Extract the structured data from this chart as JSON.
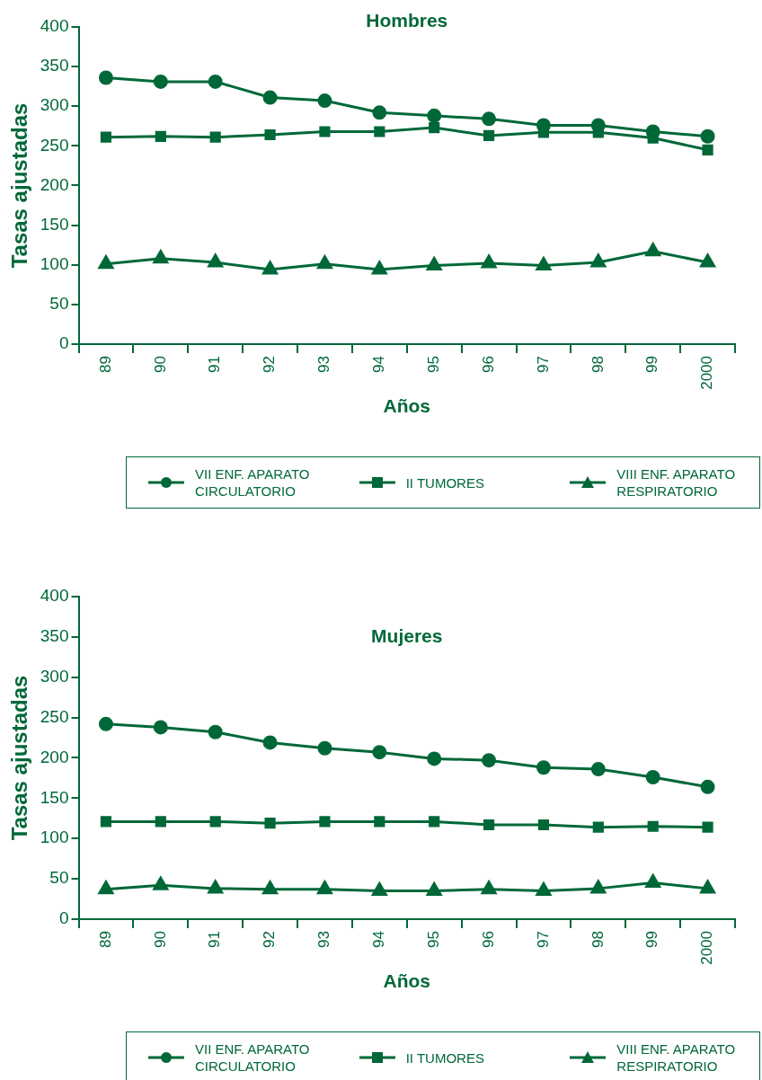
{
  "chart_data": [
    {
      "type": "line",
      "title": "Hombres",
      "xlabel": "Años",
      "ylabel": "Tasas ajustadas",
      "categories": [
        "89",
        "90",
        "91",
        "92",
        "93",
        "94",
        "95",
        "96",
        "97",
        "98",
        "99",
        "2000"
      ],
      "series": [
        {
          "name": "VII ENF. APARATO CIRCULATORIO",
          "color": "#006838",
          "marker": "circle",
          "values": [
            336,
            331,
            331,
            311,
            307,
            292,
            288,
            284,
            276,
            276,
            268,
            262
          ]
        },
        {
          "name": "II TUMORES",
          "color": "#006838",
          "marker": "square",
          "values": [
            261,
            262,
            261,
            264,
            268,
            268,
            273,
            263,
            267,
            267,
            260,
            245
          ]
        },
        {
          "name": "VIII ENF. APARATO RESPIRATORIO",
          "color": "#006838",
          "marker": "triangle",
          "values": [
            101,
            108,
            103,
            94,
            101,
            94,
            99,
            102,
            99,
            103,
            117,
            103
          ]
        }
      ],
      "ylim": [
        0,
        400
      ],
      "yticks": [
        0,
        50,
        100,
        150,
        200,
        250,
        300,
        350,
        400
      ],
      "grid": false,
      "legend": "bottom",
      "line_style": "solid"
    },
    {
      "type": "line",
      "title": "Mujeres",
      "xlabel": "Años",
      "ylabel": "Tasas ajustadas",
      "categories": [
        "89",
        "90",
        "91",
        "92",
        "93",
        "94",
        "95",
        "96",
        "97",
        "98",
        "99",
        "2000"
      ],
      "series": [
        {
          "name": "VII ENF. APARATO CIRCULATORIO",
          "color": "#006838",
          "marker": "circle",
          "values": [
            242,
            238,
            232,
            219,
            212,
            207,
            199,
            197,
            188,
            186,
            176,
            164
          ]
        },
        {
          "name": "II TUMORES",
          "color": "#006838",
          "marker": "square",
          "values": [
            121,
            121,
            121,
            119,
            121,
            121,
            121,
            117,
            117,
            114,
            115,
            114
          ]
        },
        {
          "name": "VIII ENF. APARATO RESPIRATORIO",
          "color": "#006838",
          "marker": "triangle",
          "values": [
            37,
            42,
            38,
            37,
            37,
            35,
            35,
            37,
            35,
            38,
            45,
            38
          ]
        }
      ],
      "ylim": [
        0,
        400
      ],
      "yticks": [
        0,
        50,
        100,
        150,
        200,
        250,
        300,
        350,
        400
      ],
      "grid": false,
      "legend": "bottom",
      "line_style": "solid"
    }
  ]
}
